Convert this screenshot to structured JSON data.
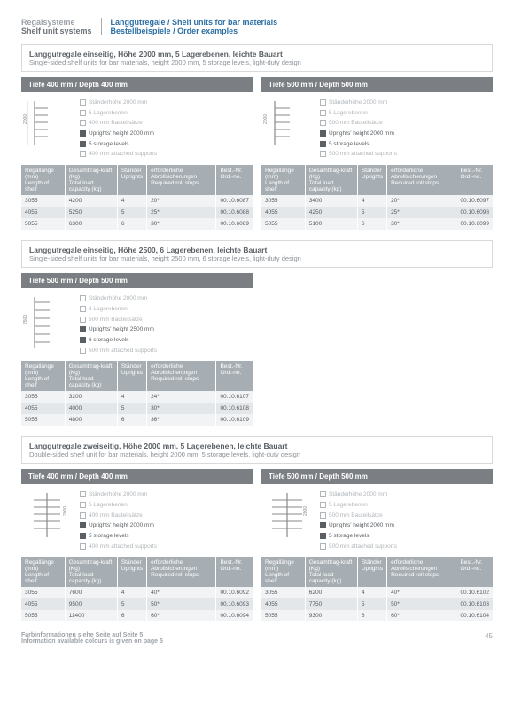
{
  "header": {
    "left_de": "Regalsysteme",
    "left_en": "Shelf unit systems",
    "right_de": "Langgutregale / Shelf units for bar materials",
    "right_en": "Bestellbeispiele / Order examples"
  },
  "columns": {
    "c1_de": "Regallänge (mm)",
    "c1_en": "Length of shelf",
    "c2_de": "Gesamttrag-kraft (Kg)",
    "c2_en": "Total load capacity (kg)",
    "c3_de": "Ständer",
    "c3_en": "Uprights",
    "c4_de": "erforderliche Abrollsicherungen",
    "c4_en": "Required roll stops",
    "c5_de": "Best.-Nr.",
    "c5_en": "Ord.-no."
  },
  "spec_labels": {
    "s1": "Ständerhöhe 2000 mm",
    "s2": "5 Lagerebenen",
    "s3": "400 mm Bauteilsätze",
    "s4_a": "Uprights' height 2000 mm",
    "s5": "5 storage levels",
    "s6": "400 mm attached supports",
    "s3_500": "500 mm Bauteilsätze",
    "s4_500": "Uprights' height 2000 mm",
    "s6_500": "500 mm attached supports",
    "s2_6": "6 Lagerebenen",
    "s4_2500": "Uprights' height 2500 mm",
    "s5_6": "6 storage levels",
    "s6_2500": "500 mm attached supports"
  },
  "sec1": {
    "title_de": "Langgutregale einseitig, Höhe 2000 mm, 5 Lagerebenen, leichte Bauart",
    "title_en": "Single-sided shelf units for bar materials, height 2000 mm, 5 storage levels, light-duty design",
    "t400": {
      "label": "Tiefe 400 mm / Depth 400 mm",
      "rows": [
        [
          "3055",
          "4200",
          "4",
          "20*",
          "00.10.6087"
        ],
        [
          "4055",
          "5250",
          "5",
          "25*",
          "00.10.6088"
        ],
        [
          "5055",
          "6300",
          "6",
          "30*",
          "00.10.6089"
        ]
      ]
    },
    "t500": {
      "label": "Tiefe 500 mm / Depth 500 mm",
      "rows": [
        [
          "3055",
          "3400",
          "4",
          "20*",
          "00.10.6097"
        ],
        [
          "4055",
          "4250",
          "5",
          "25*",
          "00.10.6098"
        ],
        [
          "5055",
          "5100",
          "6",
          "30*",
          "00.10.6099"
        ]
      ]
    }
  },
  "sec2": {
    "title_de": "Langgutregale einseitig, Höhe 2500, 6 Lagerebenen, leichte Bauart",
    "title_en": "Single-sided shelf units for bar materials, height 2500 mm, 6 storage levels, light-duty design",
    "t500": {
      "label": "Tiefe 500 mm / Depth 500 mm",
      "rows": [
        [
          "3055",
          "3200",
          "4",
          "24*",
          "00.10.6107"
        ],
        [
          "4055",
          "4000",
          "5",
          "30*",
          "00.10.6108"
        ],
        [
          "5055",
          "4800",
          "6",
          "36*",
          "00.10.6109"
        ]
      ]
    }
  },
  "sec3": {
    "title_de": "Langgutregale zweiseitig, Höhe 2000 mm, 5 Lagerebenen, leichte Bauart",
    "title_en": "Double-sided shelf unit for bar materials, height 2000 mm, 5 storage levels, light-duty design",
    "t400": {
      "label": "Tiefe 400 mm / Depth 400 mm",
      "rows": [
        [
          "3055",
          "7600",
          "4",
          "40*",
          "00.10.6092"
        ],
        [
          "4055",
          "9500",
          "5",
          "50*",
          "00.10.6093"
        ],
        [
          "5055",
          "11400",
          "6",
          "60*",
          "00.10.6094"
        ]
      ]
    },
    "t500": {
      "label": "Tiefe 500 mm / Depth 500 mm",
      "rows": [
        [
          "3055",
          "6200",
          "4",
          "40*",
          "00.10.6102"
        ],
        [
          "4055",
          "7750",
          "5",
          "50*",
          "00.10.6103"
        ],
        [
          "5055",
          "9300",
          "6",
          "60*",
          "00.10.6104"
        ]
      ]
    }
  },
  "footer": {
    "line1": "Farbinformationen siehe Seite auf Seite 5",
    "line2": "Information available colours is given on page 5",
    "page": "45"
  },
  "dims": {
    "h2000": "2000",
    "h2500": "2500"
  }
}
